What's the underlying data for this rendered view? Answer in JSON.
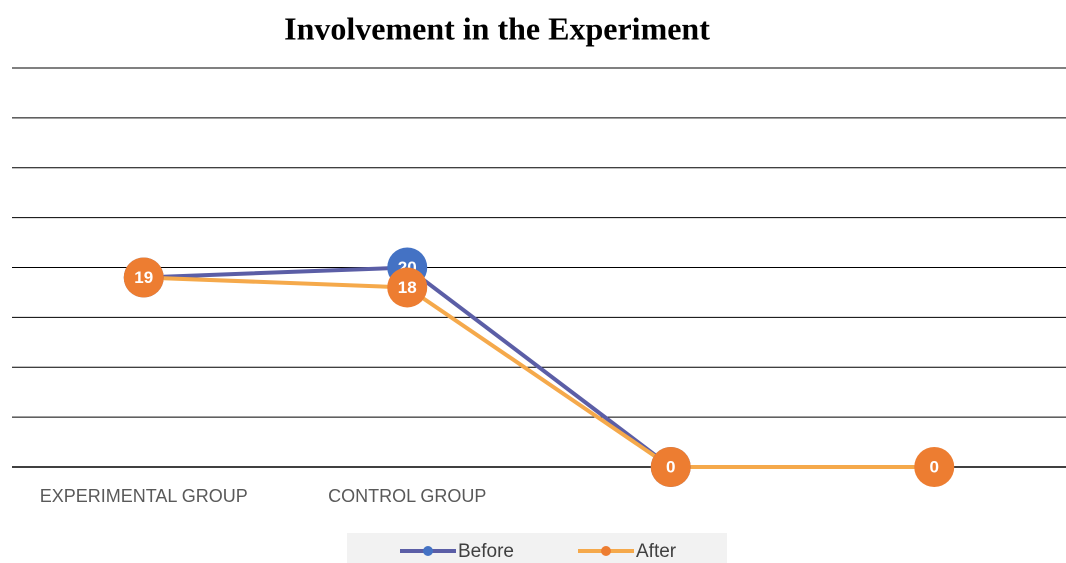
{
  "chart_data": {
    "type": "line",
    "title": "Involvement in the Experiment",
    "categories": [
      "EXPERIMENTAL GROUP",
      "CONTROL GROUP",
      null,
      null
    ],
    "series": [
      {
        "name": "Before",
        "color": "#4472c4",
        "line_color": "#5b5ea6",
        "values": [
          19,
          20,
          0,
          null
        ]
      },
      {
        "name": "After",
        "color": "#ed7d31",
        "line_color": "#f5a94b",
        "values": [
          19,
          18,
          0,
          0
        ]
      }
    ],
    "ylim": [
      0,
      40
    ],
    "yticks": [
      0,
      5,
      10,
      15,
      20,
      25,
      30,
      35,
      40
    ],
    "grid": true,
    "legend": "bottom"
  }
}
